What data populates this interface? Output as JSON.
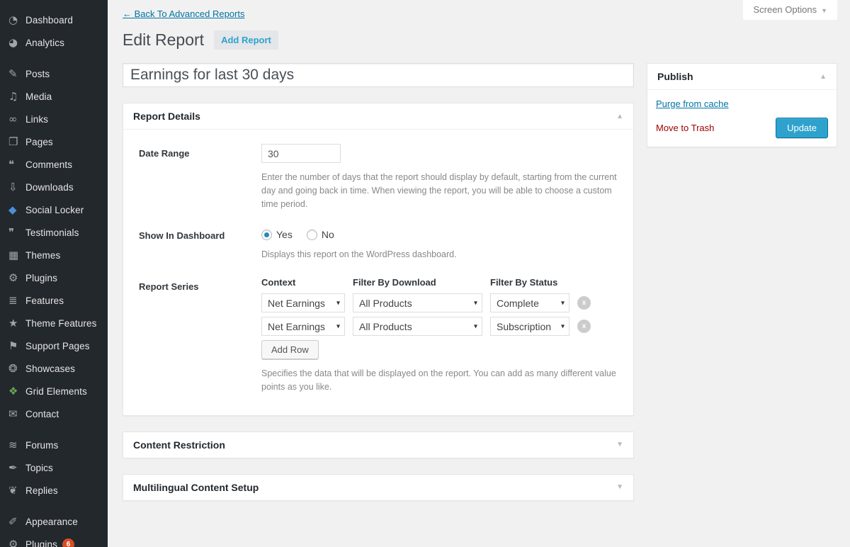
{
  "colors": {
    "accent_blue": "#2ea2cc",
    "link_blue": "#0074a2",
    "danger_red": "#a00000",
    "badge_orange": "#d54e21",
    "sidebar_bg": "#23282d",
    "social_locker_icon": "#4a90d9",
    "grid_elements_icon": "#6aa84f"
  },
  "screen_options": {
    "label": "Screen Options",
    "arrow": "▼"
  },
  "sidebar": {
    "items": [
      {
        "label": "Dashboard",
        "icon": "dashboard-icon",
        "glyph": "◔"
      },
      {
        "label": "Analytics",
        "icon": "analytics-icon",
        "glyph": "◕"
      },
      {
        "label": "Posts",
        "icon": "posts-icon",
        "glyph": "✎"
      },
      {
        "label": "Media",
        "icon": "media-icon",
        "glyph": "♫"
      },
      {
        "label": "Links",
        "icon": "links-icon",
        "glyph": "∞"
      },
      {
        "label": "Pages",
        "icon": "pages-icon",
        "glyph": "❐"
      },
      {
        "label": "Comments",
        "icon": "comments-icon",
        "glyph": "❝"
      },
      {
        "label": "Downloads",
        "icon": "downloads-icon",
        "glyph": "⇩"
      },
      {
        "label": "Social Locker",
        "icon": "social-locker-icon",
        "glyph": "◆"
      },
      {
        "label": "Testimonials",
        "icon": "testimonials-icon",
        "glyph": "❞"
      },
      {
        "label": "Themes",
        "icon": "themes-icon",
        "glyph": "▦"
      },
      {
        "label": "Plugins",
        "icon": "plugins-icon",
        "glyph": "⚙"
      },
      {
        "label": "Features",
        "icon": "features-icon",
        "glyph": "≣"
      },
      {
        "label": "Theme Features",
        "icon": "theme-features-icon",
        "glyph": "★"
      },
      {
        "label": "Support Pages",
        "icon": "support-pages-icon",
        "glyph": "⚑"
      },
      {
        "label": "Showcases",
        "icon": "showcases-icon",
        "glyph": "❂"
      },
      {
        "label": "Grid Elements",
        "icon": "grid-elements-icon",
        "glyph": "❖"
      },
      {
        "label": "Contact",
        "icon": "contact-icon",
        "glyph": "✉"
      },
      {
        "label": "Forums",
        "icon": "forums-icon",
        "glyph": "≋"
      },
      {
        "label": "Topics",
        "icon": "topics-icon",
        "glyph": "✒"
      },
      {
        "label": "Replies",
        "icon": "replies-icon",
        "glyph": "❦"
      },
      {
        "label": "Appearance",
        "icon": "appearance-icon",
        "glyph": "✐"
      },
      {
        "label": "Plugins",
        "icon": "plugins-icon",
        "glyph": "⚙",
        "count": "6"
      }
    ]
  },
  "header": {
    "back_link": "← Back To Advanced Reports",
    "title": "Edit Report",
    "add_report_button": "Add Report"
  },
  "post_title": {
    "value": "Earnings for last 30 days"
  },
  "publish_box": {
    "title": "Publish",
    "collapse_arrow": "▲",
    "purge_link": "Purge from cache",
    "trash_link": "Move to Trash",
    "update_button": "Update"
  },
  "report_details": {
    "title": "Report Details",
    "collapse_arrow": "▲",
    "date_range": {
      "label": "Date Range",
      "value": "30",
      "description": "Enter the number of days that the report should display by default, starting from the current day and going back in time. When viewing the report, you will be able to choose a custom time period."
    },
    "show_in_dashboard": {
      "label": "Show In Dashboard",
      "yes_label": "Yes",
      "no_label": "No",
      "selected": "Yes",
      "description": "Displays this report on the WordPress dashboard."
    },
    "report_series": {
      "label": "Report Series",
      "column_headers": [
        "Context",
        "Filter By Download",
        "Filter By Status"
      ],
      "rows": [
        {
          "context": "Net Earnings",
          "filter_by_download": "All Products",
          "filter_by_status": "Complete",
          "remove_label": "x"
        },
        {
          "context": "Net Earnings",
          "filter_by_download": "All Products",
          "filter_by_status": "Subscription",
          "remove_label": "x"
        }
      ],
      "add_row_button": "Add Row",
      "description": "Specifies the data that will be displayed on the report. You can add as many different value points as you like."
    }
  },
  "collapsed_panels": [
    {
      "title": "Content Restriction",
      "collapse_arrow": "▼"
    },
    {
      "title": "Multilingual Content Setup",
      "collapse_arrow": "▼"
    }
  ]
}
